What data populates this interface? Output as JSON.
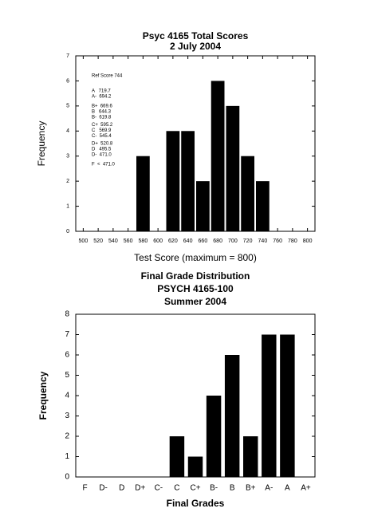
{
  "chart_data": [
    {
      "type": "histogram",
      "title": [
        "Psyc 4165 Total Scores",
        "2 July 2004"
      ],
      "x_label": "Test Score (maximum = 800)",
      "y_label": "Frequency",
      "bins": [
        570,
        590,
        610,
        630,
        650,
        670,
        690,
        710,
        730,
        750
      ],
      "values": [
        3,
        0,
        4,
        4,
        2,
        6,
        5,
        3,
        2
      ],
      "color": "#000000",
      "xlim": [
        490,
        810
      ],
      "xticks": [
        500,
        520,
        540,
        560,
        580,
        600,
        620,
        640,
        660,
        680,
        700,
        720,
        740,
        760,
        780,
        800
      ],
      "ylim": [
        0,
        7
      ],
      "yticks": [
        0,
        1,
        2,
        3,
        4,
        5,
        6,
        7
      ],
      "annotations": [
        "Ref Score 744",
        "A   719.7",
        "A-  694.2",
        "B+  669.6",
        "B   644.3",
        "B-  619.8",
        "C+  595.2",
        "C   569.9",
        "C-  545.4",
        "D+  520.8",
        "D   495.5",
        "D-  471.0",
        "F  <  471.0"
      ]
    },
    {
      "type": "bar",
      "title": [
        "Final Grade Distribution",
        "PSYCH 4165-100",
        "Summer 2004"
      ],
      "x_label": "Final Grades",
      "y_label": "Frequency",
      "categories": [
        "F",
        "D-",
        "D",
        "D+",
        "C-",
        "C",
        "C+",
        "B-",
        "B",
        "B+",
        "A-",
        "A",
        "A+"
      ],
      "values": [
        0,
        0,
        0,
        0,
        0,
        2,
        1,
        4,
        6,
        2,
        7,
        7,
        0
      ],
      "color": "#000000",
      "ylim": [
        0,
        8
      ],
      "yticks": [
        0,
        1,
        2,
        3,
        4,
        5,
        6,
        7,
        8
      ]
    }
  ]
}
